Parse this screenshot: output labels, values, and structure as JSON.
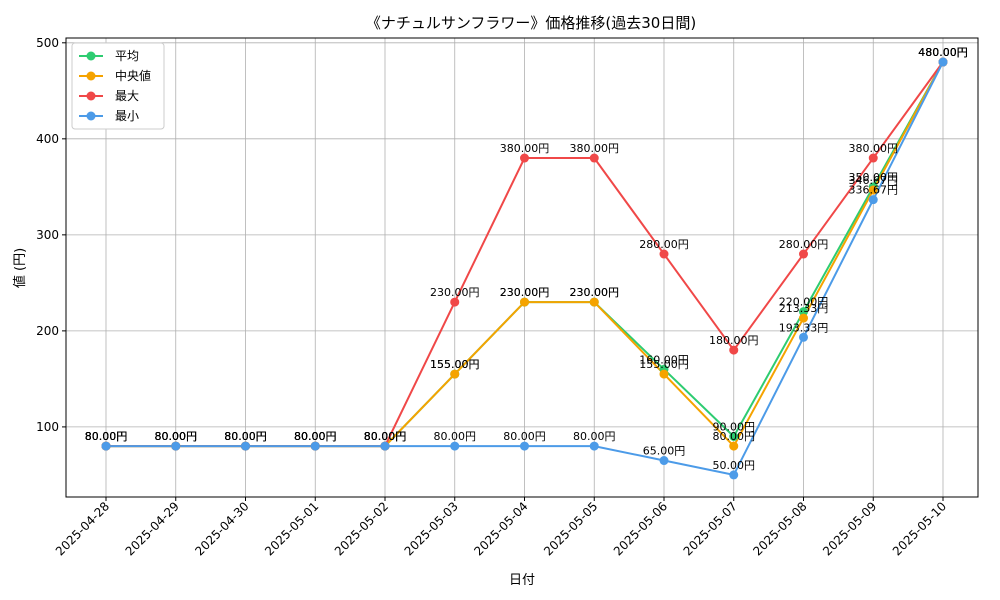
{
  "chart_data": {
    "type": "line",
    "title": "《ナチュルサンフラワー》価格推移(過去30日間)",
    "xlabel": "日付",
    "ylabel": "値 (円)",
    "categories": [
      "2025-04-28",
      "2025-04-29",
      "2025-04-30",
      "2025-05-01",
      "2025-05-02",
      "2025-05-03",
      "2025-05-04",
      "2025-05-05",
      "2025-05-06",
      "2025-05-07",
      "2025-05-08",
      "2025-05-09",
      "2025-05-10"
    ],
    "ylim": [
      27,
      505
    ],
    "yticks": [
      100,
      200,
      300,
      400,
      500
    ],
    "grid": true,
    "legend_position": "top-left",
    "series": [
      {
        "name": "平均",
        "color": "#2ecc71",
        "values": [
          80,
          80,
          80,
          80,
          80,
          155,
          230,
          230,
          160,
          90,
          220,
          350,
          480
        ],
        "labels": [
          "80.00円",
          "80.00円",
          "80.00円",
          "80.00円",
          "80.00円",
          "155.00円",
          "230.00円",
          "230.00円",
          "160.00円",
          "90.00円",
          "220.00円",
          "350.00円",
          "480.00円"
        ]
      },
      {
        "name": "中央値",
        "color": "#f5a300",
        "values": [
          80,
          80,
          80,
          80,
          80,
          155,
          230,
          230,
          155,
          80,
          213.33,
          346.67,
          480
        ],
        "labels": [
          "80.00円",
          "80.00円",
          "80.00円",
          "80.00円",
          "80.00円",
          "155.00円",
          "230.00円",
          "230.00円",
          "155.00円",
          "80.00円",
          "213.33円",
          "346.67円",
          "480.00円"
        ]
      },
      {
        "name": "最大",
        "color": "#f04848",
        "values": [
          80,
          80,
          80,
          80,
          80,
          230,
          380,
          380,
          280,
          180,
          280,
          380,
          480
        ],
        "labels": [
          "80.00円",
          "80.00円",
          "80.00円",
          "80.00円",
          "80.00円",
          "230.00円",
          "380.00円",
          "380.00円",
          "280.00円",
          "180.00円",
          "280.00円",
          "380.00円",
          "480.00円"
        ]
      },
      {
        "name": "最小",
        "color": "#4c9be8",
        "values": [
          80,
          80,
          80,
          80,
          80,
          80,
          80,
          80,
          65,
          50,
          193.33,
          336.67,
          480
        ],
        "labels": [
          "80.00円",
          "80.00円",
          "80.00円",
          "80.00円",
          "80.00円",
          "80.00円",
          "80.00円",
          "80.00円",
          "65.00円",
          "50.00円",
          "193.33円",
          "336.67円",
          "480.00円"
        ]
      }
    ]
  }
}
